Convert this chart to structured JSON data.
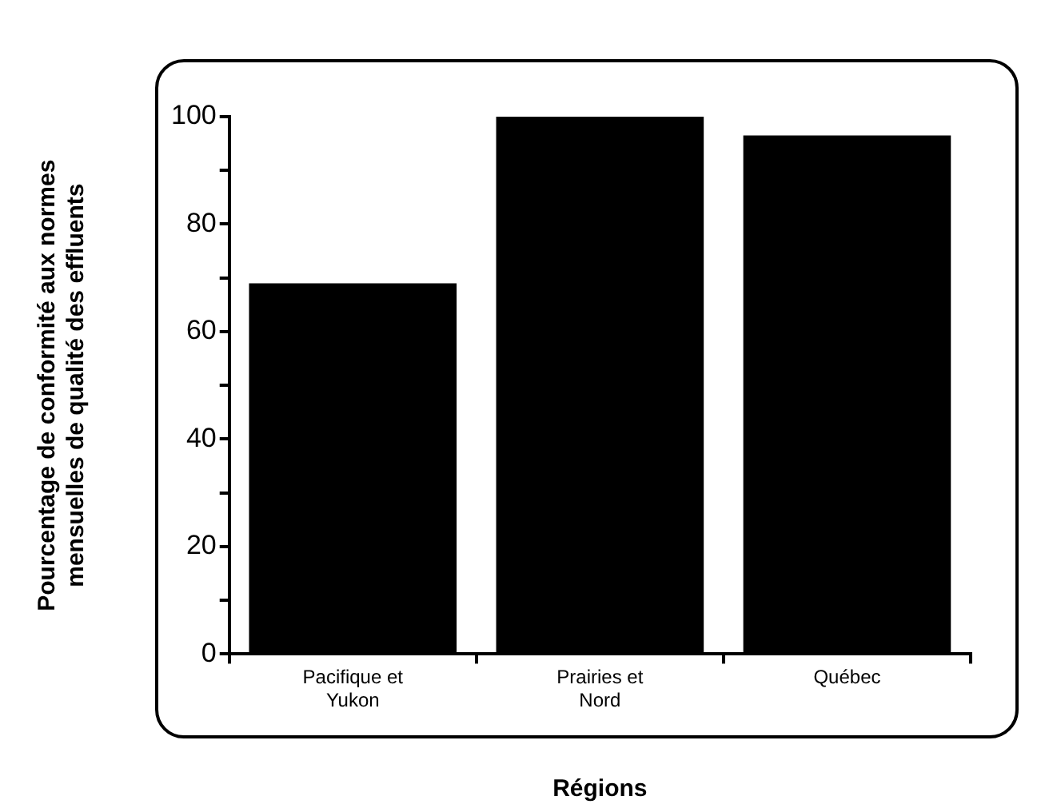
{
  "chart_data": {
    "type": "bar",
    "xlabel": "Régions",
    "ylabel": "Pourcentage de conformité aux normes\nmensuelles de qualité des effluents",
    "categories": [
      "Pacifique et Yukon",
      "Prairies et Nord",
      "Québec"
    ],
    "values": [
      69,
      100,
      96.5
    ],
    "color": "#000000",
    "ylim": [
      0,
      100
    ],
    "yticks": [
      0,
      {
        "value": 10,
        "label": null
      },
      20,
      {
        "value": 30,
        "label": null
      },
      40,
      {
        "value": 50,
        "label": null
      },
      60,
      {
        "value": 70,
        "label": null
      },
      80,
      {
        "value": 90,
        "label": null
      },
      100
    ],
    "grid": false,
    "legend": false
  }
}
